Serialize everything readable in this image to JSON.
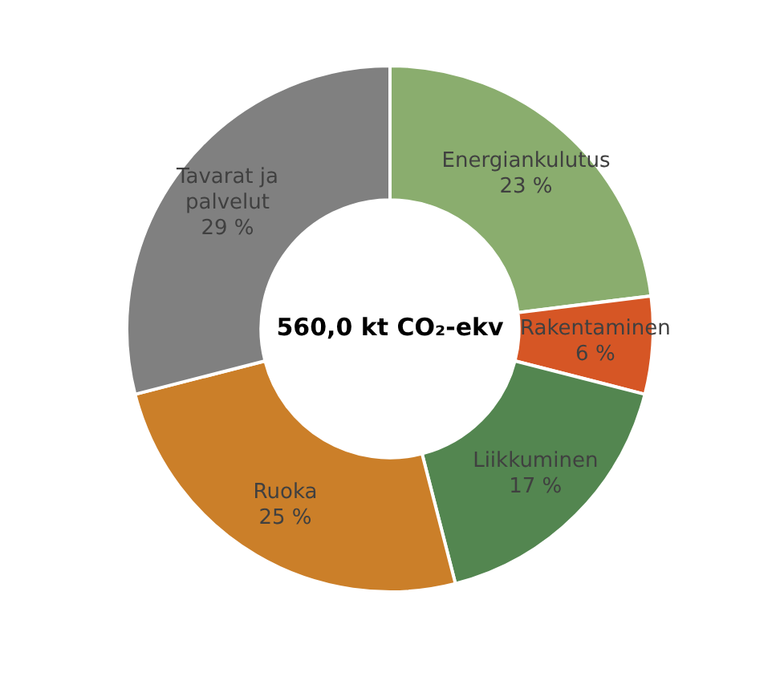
{
  "chart_data": {
    "type": "donut",
    "categories": [
      "Energiankulutus",
      "Rakentaminen",
      "Liikkuminen",
      "Ruoka",
      "Tavarat ja palvelut"
    ],
    "values": [
      23,
      6,
      17,
      25,
      29
    ],
    "colors": [
      "#8aad6e",
      "#d65625",
      "#538650",
      "#cb7f29",
      "#808080"
    ],
    "value_labels": [
      "23 %",
      "6 %",
      "17 %",
      "25 %",
      "29 %"
    ],
    "annotations": [
      "560,0 kt CO₂-ekv"
    ],
    "legend": false
  }
}
